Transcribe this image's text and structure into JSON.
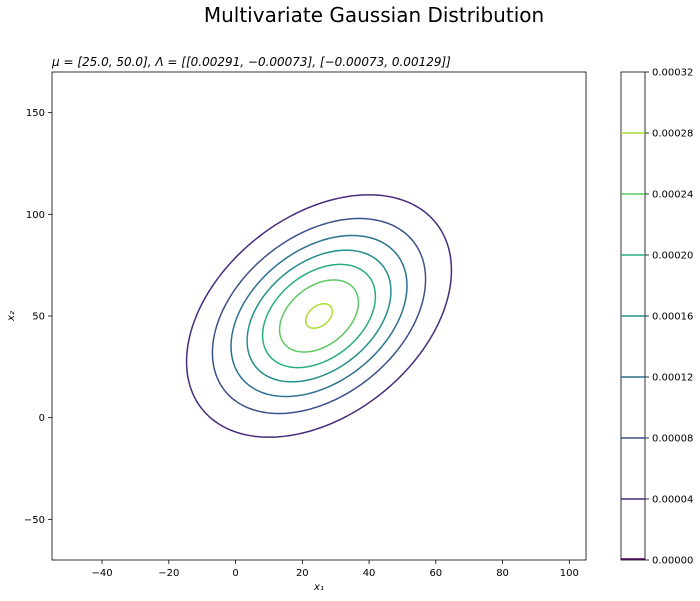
{
  "chart_data": {
    "type": "contour",
    "title": "Multivariate Gaussian Distribution",
    "subtitle": "μ = [25.0, 50.0], Λ = [[0.00291, −0.00073], [−0.00073, 0.00129]]",
    "xlabel": "x₁",
    "ylabel": "x₂",
    "xlim": [
      -55,
      105
    ],
    "ylim": [
      -70,
      170
    ],
    "xticks": [
      -40,
      -20,
      0,
      20,
      40,
      60,
      80,
      100
    ],
    "yticks": [
      -50,
      0,
      50,
      100,
      150
    ],
    "mean": [
      25.0,
      50.0
    ],
    "precision": [
      [
        0.00291,
        -0.00073
      ],
      [
        -0.00073,
        0.00129
      ]
    ],
    "levels": [
      4e-05,
      8e-05,
      0.00012,
      0.00016,
      0.0002,
      0.00024,
      0.00028
    ],
    "level_colors": [
      "#472c7a",
      "#3b518b",
      "#2c718e",
      "#21908d",
      "#27ad81",
      "#5cc863",
      "#aadc32"
    ],
    "colorbar": {
      "ticks": [
        "0.00000",
        "0.00004",
        "0.00008",
        "0.00012",
        "0.00016",
        "0.00020",
        "0.00024",
        "0.00028",
        "0.00032"
      ],
      "range": [
        0,
        0.00032
      ],
      "line_colors": [
        "#440154",
        "#472c7a",
        "#3b518b",
        "#2c718e",
        "#21908d",
        "#27ad81",
        "#5cc863",
        "#aadc32",
        "#fde725"
      ]
    },
    "grid": false
  }
}
